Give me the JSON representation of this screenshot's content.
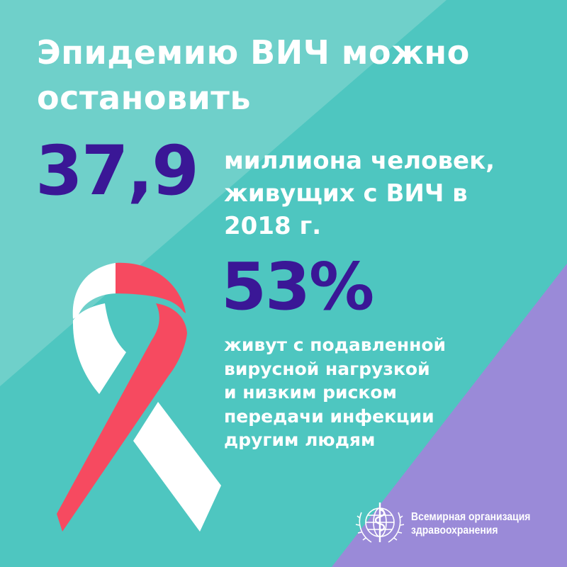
{
  "title": [
    "Эпидемию ВИЧ можно",
    "остановить"
  ],
  "stat1": {
    "value": "37,9",
    "text": [
      "миллиона человек,",
      "живущих с ВИЧ в",
      "2018 г."
    ]
  },
  "stat2": {
    "value": "53%",
    "text": [
      "живут с подавленной",
      "вирусной нагрузкой",
      "и низким риском",
      "передачи инфекции",
      "другим людям"
    ]
  },
  "logo": {
    "icon": "who-emblem-icon",
    "text": [
      "Всемирная организация",
      "здравоохранения"
    ]
  },
  "colors": {
    "teal": "#4ec6c0",
    "light_teal": "#6fd0ca",
    "purple": "#9a8ad8",
    "dark_purple": "#3a1796",
    "ribbon_red": "#f64a60",
    "white": "#ffffff"
  }
}
